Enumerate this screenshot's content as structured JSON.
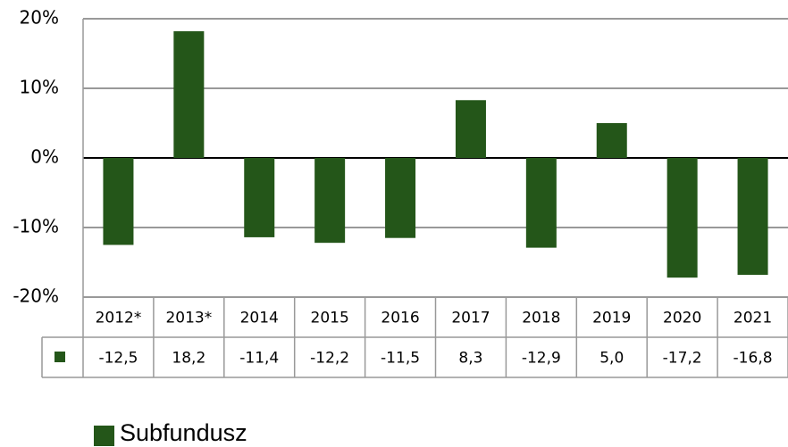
{
  "chart_data": {
    "type": "bar",
    "categories": [
      "2012*",
      "2013*",
      "2014",
      "2015",
      "2016",
      "2017",
      "2018",
      "2019",
      "2020",
      "2021"
    ],
    "series": [
      {
        "name": "Subfundusz",
        "color": "#245619",
        "values": [
          -12.5,
          18.2,
          -11.4,
          -12.2,
          -11.5,
          8.3,
          -12.9,
          5.0,
          -17.2,
          -16.8
        ],
        "value_labels": [
          "-12,5",
          "18,2",
          "-11,4",
          "-12,2",
          "-11,5",
          "8,3",
          "-12,9",
          "5,0",
          "-17,2",
          "-16,8"
        ]
      }
    ],
    "ylim": [
      -20,
      20
    ],
    "yticks": [
      {
        "value": -20,
        "label": "-20%"
      },
      {
        "value": -10,
        "label": "-10%"
      },
      {
        "value": 0,
        "label": "0%"
      },
      {
        "value": 10,
        "label": "10%"
      },
      {
        "value": 20,
        "label": "20%"
      }
    ],
    "grid": true
  }
}
